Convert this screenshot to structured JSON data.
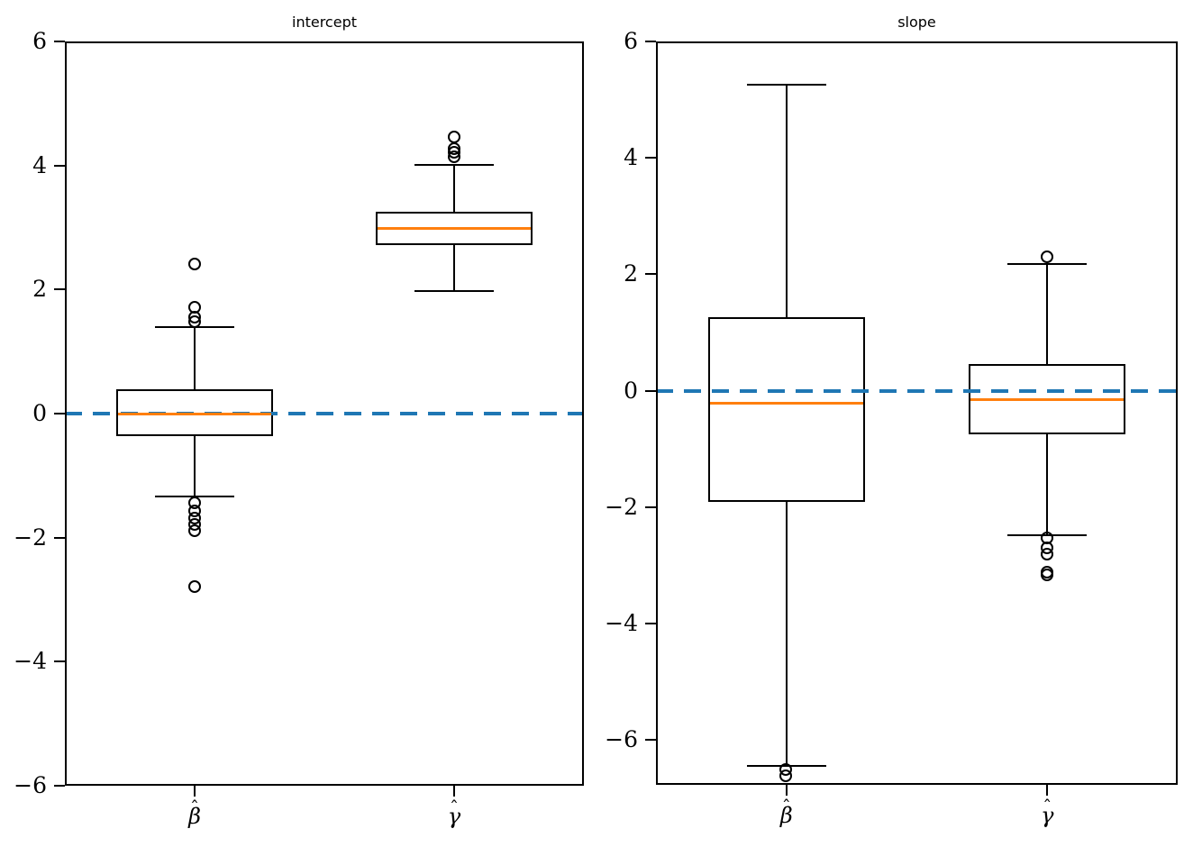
{
  "figure": {
    "background": "#ffffff"
  },
  "colors": {
    "line": "#000000",
    "median": "#ff7f0e",
    "refline": "#1f77b4",
    "text": "#000000"
  },
  "chart_data": [
    {
      "type": "boxplot",
      "title": "intercept",
      "categories": [
        "β̂",
        "γ̂"
      ],
      "ylim": [
        -6,
        6
      ],
      "yticks": [
        6,
        4,
        2,
        0,
        -2,
        -4,
        -6
      ],
      "ytick_labels": [
        "6",
        "4",
        "2",
        "0",
        "−2",
        "−4",
        "−6"
      ],
      "refline_y": 0,
      "grid": false,
      "boxes": [
        {
          "category": "β̂",
          "median": 0.0,
          "q1": -0.35,
          "q3": 0.38,
          "whisker_low": -1.34,
          "whisker_high": 1.39,
          "outliers": [
            2.41,
            1.7,
            1.55,
            1.48,
            -1.44,
            -1.57,
            -1.69,
            -1.8,
            -1.9,
            -2.8
          ]
        },
        {
          "category": "γ̂",
          "median": 2.98,
          "q1": 2.73,
          "q3": 3.24,
          "whisker_low": 1.98,
          "whisker_high": 4.01,
          "outliers": [
            4.45,
            4.27,
            4.2,
            4.13
          ]
        }
      ]
    },
    {
      "type": "boxplot",
      "title": "slope",
      "categories": [
        "β̂",
        "γ̂"
      ],
      "ylim": [
        -6.77,
        6
      ],
      "yticks": [
        6,
        4,
        2,
        0,
        -2,
        -4,
        -6
      ],
      "ytick_labels": [
        "6",
        "4",
        "2",
        "0",
        "−2",
        "−4",
        "−6"
      ],
      "refline_y": 0,
      "grid": false,
      "boxes": [
        {
          "category": "β̂",
          "median": -0.21,
          "q1": -1.9,
          "q3": 1.25,
          "whisker_low": -6.45,
          "whisker_high": 5.26,
          "outliers": [
            -6.52,
            -6.62
          ]
        },
        {
          "category": "γ̂",
          "median": -0.15,
          "q1": -0.74,
          "q3": 0.44,
          "whisker_low": -2.49,
          "whisker_high": 2.18,
          "outliers": [
            2.3,
            -2.53,
            -2.7,
            -2.81,
            -3.12,
            -3.17
          ]
        }
      ]
    }
  ]
}
